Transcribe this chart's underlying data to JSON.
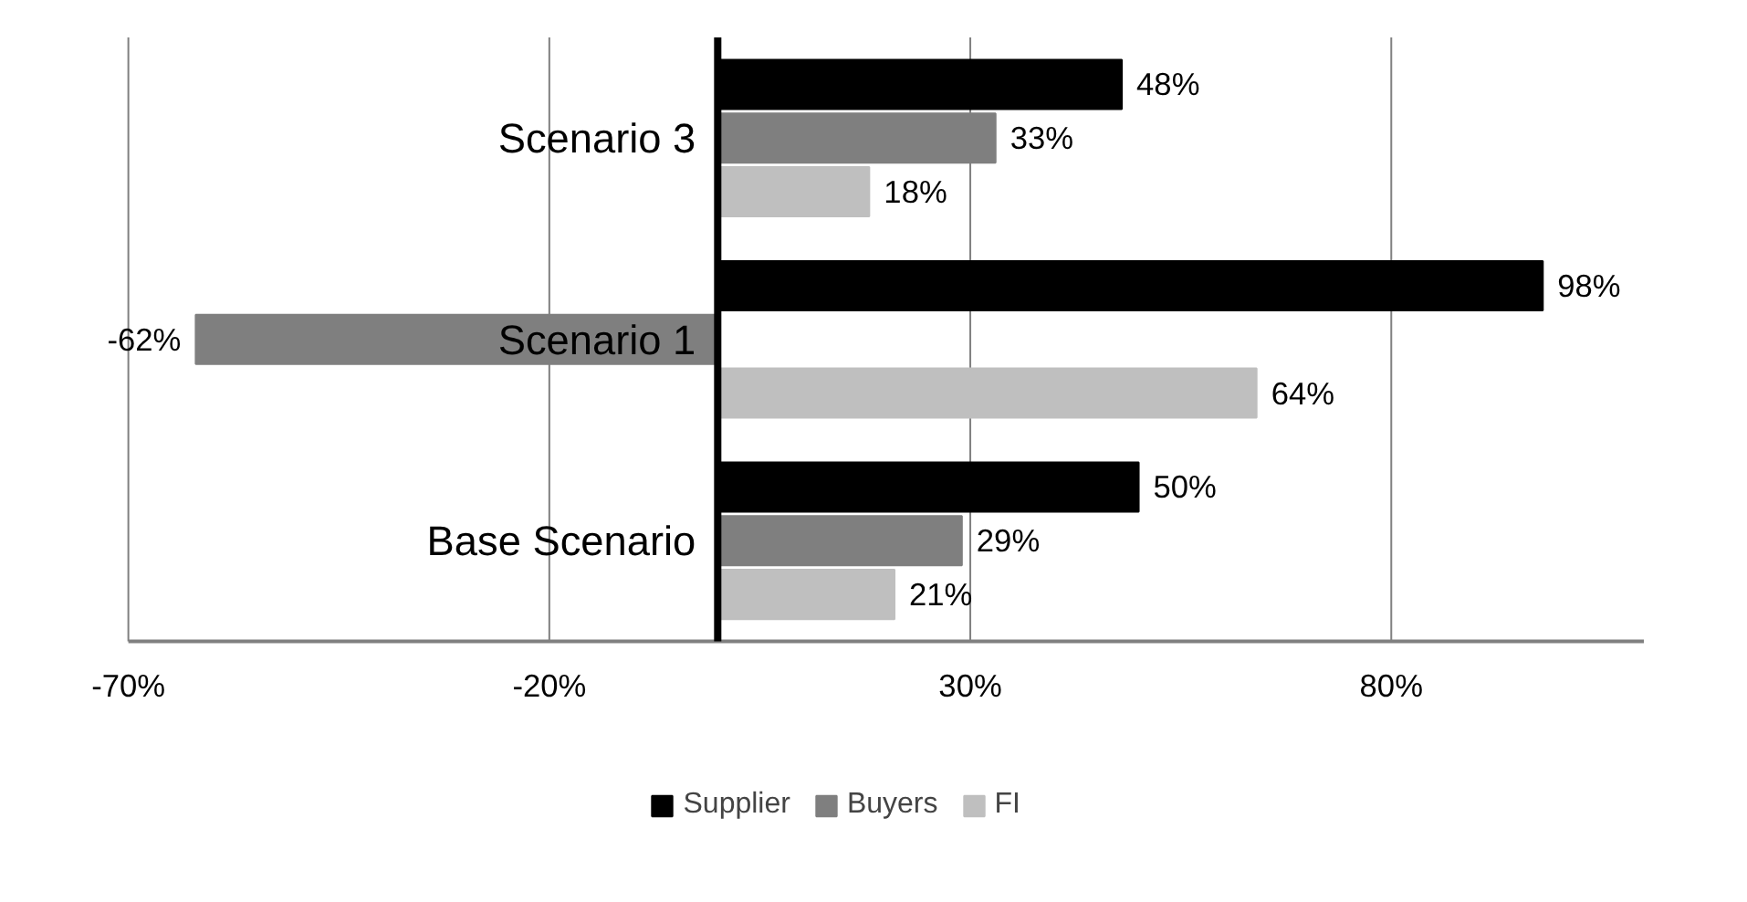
{
  "chart_data": {
    "type": "bar",
    "orientation": "horizontal",
    "categories": [
      "Scenario 3",
      "Scenario 1",
      "Base Scenario"
    ],
    "series": [
      {
        "name": "Supplier",
        "color": "#000000",
        "values": [
          48,
          98,
          50
        ],
        "value_labels": [
          "48%",
          "98%",
          "50%"
        ]
      },
      {
        "name": "Buyers",
        "color": "#7f7f7f",
        "values": [
          33,
          -62,
          29
        ],
        "value_labels": [
          "33%",
          "-62%",
          "29%"
        ]
      },
      {
        "name": "FI",
        "color": "#bfbfbf",
        "values": [
          18,
          64,
          21
        ],
        "value_labels": [
          "18%",
          "64%",
          "21%"
        ]
      }
    ],
    "xlim": [
      -70,
      110
    ],
    "xticks": [
      {
        "value": -70,
        "label": "-70%"
      },
      {
        "value": -20,
        "label": "-20%"
      },
      {
        "value": 30,
        "label": "30%"
      },
      {
        "value": 80,
        "label": "80%"
      }
    ],
    "grid": "x",
    "legend": "bottom"
  }
}
